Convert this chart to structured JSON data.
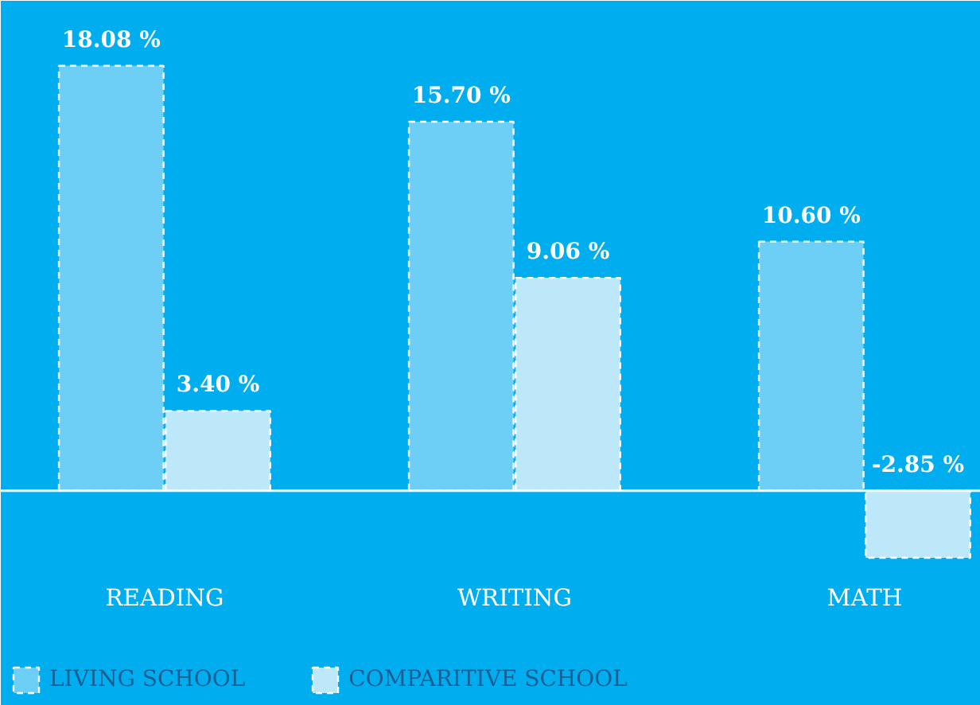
{
  "chart_data": {
    "type": "bar",
    "categories": [
      "READING",
      "WRITING",
      "MATH"
    ],
    "series": [
      {
        "name": "LIVING SCHOOL",
        "color": "#6dcff6",
        "values": [
          18.08,
          15.7,
          10.6
        ],
        "value_labels": [
          "18.08 %",
          "15.70 %",
          "10.60 %"
        ]
      },
      {
        "name": "COMPARITIVE SCHOOL",
        "color": "#bde8fa",
        "values": [
          3.4,
          9.06,
          -2.85
        ],
        "value_labels": [
          "3.40 %",
          "9.06 %",
          "-2.85 %"
        ]
      }
    ],
    "legend": "bottom left"
  }
}
